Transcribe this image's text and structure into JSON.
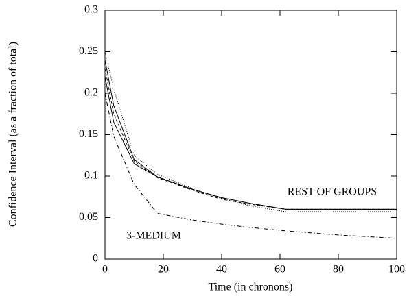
{
  "chart_data": {
    "type": "line",
    "xlabel": "Time (in chronons)",
    "ylabel": "Confidence Interval (as a fraction of total)",
    "annotations": [
      "REST OF GROUPS",
      "3-MEDIUM"
    ],
    "x": [
      0,
      3,
      10,
      18,
      30,
      40,
      50,
      62,
      80,
      100
    ],
    "series": [
      {
        "color": "#000000",
        "dash": "solid",
        "values": [
          0.24,
          0.185,
          0.12,
          0.099,
          0.084,
          0.074,
          0.067,
          0.06,
          0.06,
          0.06
        ]
      },
      {
        "color": "#000000",
        "dash": "dotted",
        "values": [
          0.25,
          0.205,
          0.125,
          0.102,
          0.085,
          0.073,
          0.064,
          0.057,
          0.057,
          0.057
        ]
      },
      {
        "color": "#000000",
        "dash": "dashed",
        "values": [
          0.23,
          0.175,
          0.118,
          0.098,
          0.083,
          0.072,
          0.066,
          0.06,
          0.06,
          0.06
        ]
      },
      {
        "color": "#000000",
        "dash": "solid",
        "values": [
          0.22,
          0.165,
          0.115,
          0.099,
          0.084,
          0.074,
          0.067,
          0.06,
          0.06,
          0.06
        ]
      },
      {
        "color": "#000000",
        "dash": "dashdot",
        "values": [
          0.2,
          0.148,
          0.09,
          0.055,
          0.047,
          0.042,
          0.038,
          0.034,
          0.029,
          0.025
        ]
      }
    ],
    "xlim": [
      0,
      100
    ],
    "xticks": [
      0,
      20,
      40,
      60,
      80,
      100
    ],
    "ylim": [
      0,
      0.3
    ],
    "yticks": [
      0,
      0.05,
      0.1,
      0.15,
      0.2,
      0.25,
      0.3
    ],
    "grid": false
  }
}
